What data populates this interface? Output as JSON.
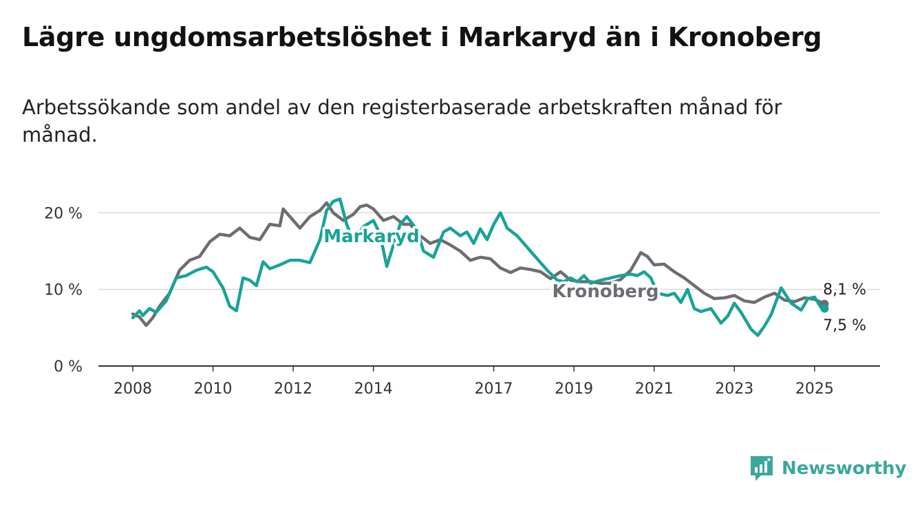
{
  "title": "Lägre ungdomsarbetslöshet i Markaryd än i Kronoberg",
  "subtitle": "Arbetssökande som andel av den registerbaserade arbetskraften månad för månad.",
  "brand": {
    "name": "Newsworthy",
    "color": "#3aa79d"
  },
  "chart_data": {
    "type": "line",
    "x_axis": {
      "type": "date",
      "range": [
        "2008-01",
        "2025-06"
      ],
      "ticks": [
        "2008",
        "2010",
        "2012",
        "2014",
        "2017",
        "2019",
        "2021",
        "2023",
        "2025"
      ]
    },
    "y_axis": {
      "range": [
        0,
        22
      ],
      "unit": "%",
      "ticks": [
        {
          "value": 0,
          "label": "0 %"
        },
        {
          "value": 10,
          "label": "10 %"
        },
        {
          "value": 20,
          "label": "20 %"
        }
      ]
    },
    "grid": "horizontal",
    "series": [
      {
        "name": "Kronoberg",
        "color": "#6e6c73",
        "end_label": "8,1 %",
        "points": [
          [
            "2008-01",
            6.8
          ],
          [
            "2008-03",
            6.4
          ],
          [
            "2008-05",
            5.3
          ],
          [
            "2008-07",
            6.3
          ],
          [
            "2008-09",
            7.8
          ],
          [
            "2008-12",
            9.5
          ],
          [
            "2009-03",
            12.5
          ],
          [
            "2009-06",
            13.8
          ],
          [
            "2009-09",
            14.3
          ],
          [
            "2009-12",
            16.2
          ],
          [
            "2010-03",
            17.2
          ],
          [
            "2010-06",
            17.0
          ],
          [
            "2010-09",
            18.0
          ],
          [
            "2010-12",
            16.8
          ],
          [
            "2011-03",
            16.5
          ],
          [
            "2011-06",
            18.5
          ],
          [
            "2011-09",
            18.3
          ],
          [
            "2011-10",
            20.5
          ],
          [
            "2011-12",
            19.5
          ],
          [
            "2012-03",
            18.0
          ],
          [
            "2012-06",
            19.5
          ],
          [
            "2012-09",
            20.3
          ],
          [
            "2012-11",
            21.3
          ],
          [
            "2013-01",
            20.0
          ],
          [
            "2013-04",
            19.0
          ],
          [
            "2013-07",
            19.8
          ],
          [
            "2013-09",
            20.8
          ],
          [
            "2013-11",
            21.0
          ],
          [
            "2014-01",
            20.5
          ],
          [
            "2014-04",
            19.0
          ],
          [
            "2014-07",
            19.5
          ],
          [
            "2014-10",
            18.5
          ],
          [
            "2014-12",
            18.5
          ],
          [
            "2015-03",
            17.0
          ],
          [
            "2015-06",
            16.0
          ],
          [
            "2015-09",
            16.5
          ],
          [
            "2015-12",
            15.8
          ],
          [
            "2016-03",
            15.0
          ],
          [
            "2016-06",
            13.8
          ],
          [
            "2016-09",
            14.2
          ],
          [
            "2016-12",
            14.0
          ],
          [
            "2017-03",
            12.8
          ],
          [
            "2017-06",
            12.2
          ],
          [
            "2017-09",
            12.8
          ],
          [
            "2017-12",
            12.6
          ],
          [
            "2018-03",
            12.3
          ],
          [
            "2018-06",
            11.4
          ],
          [
            "2018-09",
            12.3
          ],
          [
            "2018-12",
            11.2
          ],
          [
            "2019-03",
            11.0
          ],
          [
            "2019-06",
            11.0
          ],
          [
            "2019-09",
            10.8
          ],
          [
            "2019-12",
            10.8
          ],
          [
            "2020-03",
            11.3
          ],
          [
            "2020-06",
            12.5
          ],
          [
            "2020-09",
            14.8
          ],
          [
            "2020-11",
            14.3
          ],
          [
            "2021-01",
            13.2
          ],
          [
            "2021-04",
            13.3
          ],
          [
            "2021-07",
            12.3
          ],
          [
            "2021-10",
            11.5
          ],
          [
            "2022-01",
            10.5
          ],
          [
            "2022-04",
            9.5
          ],
          [
            "2022-07",
            8.8
          ],
          [
            "2022-10",
            8.9
          ],
          [
            "2023-01",
            9.2
          ],
          [
            "2023-04",
            8.5
          ],
          [
            "2023-07",
            8.3
          ],
          [
            "2023-10",
            9.0
          ],
          [
            "2024-01",
            9.5
          ],
          [
            "2024-04",
            8.6
          ],
          [
            "2024-07",
            8.4
          ],
          [
            "2024-10",
            8.9
          ],
          [
            "2025-01",
            8.7
          ],
          [
            "2025-04",
            8.1
          ]
        ]
      },
      {
        "name": "Markaryd",
        "color": "#17a398",
        "end_label": "7,5 %",
        "points": [
          [
            "2008-01",
            6.3
          ],
          [
            "2008-03",
            7.2
          ],
          [
            "2008-04",
            6.6
          ],
          [
            "2008-06",
            7.5
          ],
          [
            "2008-08",
            7.0
          ],
          [
            "2008-11",
            8.5
          ],
          [
            "2009-02",
            11.5
          ],
          [
            "2009-05",
            11.8
          ],
          [
            "2009-08",
            12.5
          ],
          [
            "2009-11",
            12.9
          ],
          [
            "2010-01",
            12.3
          ],
          [
            "2010-04",
            10.2
          ],
          [
            "2010-06",
            7.8
          ],
          [
            "2010-08",
            7.2
          ],
          [
            "2010-10",
            11.5
          ],
          [
            "2010-12",
            11.2
          ],
          [
            "2011-02",
            10.5
          ],
          [
            "2011-04",
            13.6
          ],
          [
            "2011-06",
            12.7
          ],
          [
            "2011-09",
            13.2
          ],
          [
            "2011-12",
            13.8
          ],
          [
            "2012-03",
            13.8
          ],
          [
            "2012-06",
            13.5
          ],
          [
            "2012-09",
            16.5
          ],
          [
            "2012-11",
            20.3
          ],
          [
            "2013-01",
            21.5
          ],
          [
            "2013-03",
            21.8
          ],
          [
            "2013-05",
            18.5
          ],
          [
            "2013-07",
            16.3
          ],
          [
            "2013-10",
            18.2
          ],
          [
            "2014-01",
            19.0
          ],
          [
            "2014-03",
            17.2
          ],
          [
            "2014-05",
            13.0
          ],
          [
            "2014-07",
            15.8
          ],
          [
            "2014-09",
            18.5
          ],
          [
            "2014-11",
            19.5
          ],
          [
            "2015-02",
            17.8
          ],
          [
            "2015-04",
            15.0
          ],
          [
            "2015-07",
            14.2
          ],
          [
            "2015-10",
            17.5
          ],
          [
            "2015-12",
            18.0
          ],
          [
            "2016-03",
            17.0
          ],
          [
            "2016-05",
            17.5
          ],
          [
            "2016-07",
            16.0
          ],
          [
            "2016-09",
            17.9
          ],
          [
            "2016-11",
            16.5
          ],
          [
            "2017-01",
            18.5
          ],
          [
            "2017-03",
            20.0
          ],
          [
            "2017-05",
            18.0
          ],
          [
            "2017-08",
            17.0
          ],
          [
            "2017-11",
            15.5
          ],
          [
            "2018-02",
            14.0
          ],
          [
            "2018-05",
            12.5
          ],
          [
            "2018-08",
            11.2
          ],
          [
            "2018-10",
            11.0
          ],
          [
            "2018-12",
            11.5
          ],
          [
            "2019-02",
            11.0
          ],
          [
            "2019-04",
            11.8
          ],
          [
            "2019-06",
            10.8
          ],
          [
            "2019-09",
            11.2
          ],
          [
            "2019-12",
            11.5
          ],
          [
            "2020-03",
            11.8
          ],
          [
            "2020-06",
            12.0
          ],
          [
            "2020-08",
            11.8
          ],
          [
            "2020-10",
            12.3
          ],
          [
            "2020-12",
            11.5
          ],
          [
            "2021-02",
            9.5
          ],
          [
            "2021-05",
            9.2
          ],
          [
            "2021-07",
            9.5
          ],
          [
            "2021-09",
            8.3
          ],
          [
            "2021-11",
            10.0
          ],
          [
            "2022-01",
            7.5
          ],
          [
            "2022-03",
            7.1
          ],
          [
            "2022-06",
            7.5
          ],
          [
            "2022-09",
            5.6
          ],
          [
            "2022-11",
            6.5
          ],
          [
            "2023-01",
            8.2
          ],
          [
            "2023-03",
            7.0
          ],
          [
            "2023-06",
            4.8
          ],
          [
            "2023-08",
            4.0
          ],
          [
            "2023-10",
            5.2
          ],
          [
            "2023-12",
            6.7
          ],
          [
            "2024-03",
            10.2
          ],
          [
            "2024-06",
            8.2
          ],
          [
            "2024-09",
            7.3
          ],
          [
            "2024-11",
            8.8
          ],
          [
            "2025-01",
            9.0
          ],
          [
            "2025-03",
            7.6
          ],
          [
            "2025-04",
            7.5
          ]
        ]
      }
    ]
  }
}
